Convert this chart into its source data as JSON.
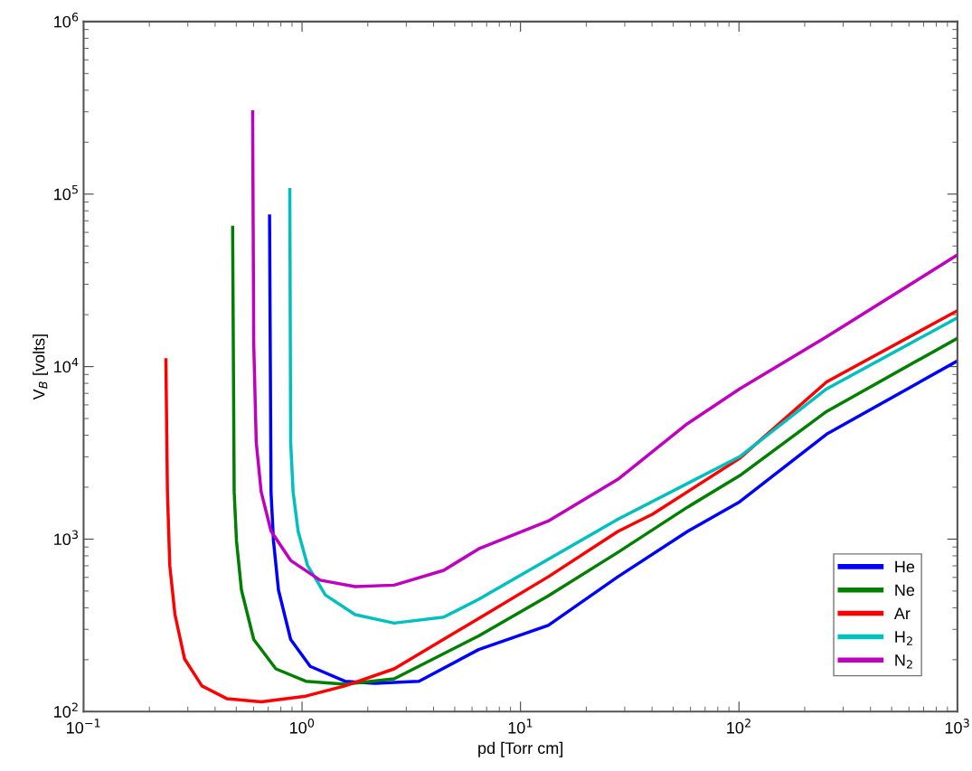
{
  "chart_data": {
    "type": "line",
    "xlabel": "pd [Torr cm]",
    "ylabel": "V$_{B}$ [volts]",
    "log": "xy",
    "xlim": [
      0.1,
      1000
    ],
    "ylim": [
      100,
      1000000
    ],
    "xticks": [
      {
        "value": 0.1,
        "label": "10$^{−1}$"
      },
      {
        "value": 1,
        "label": "10$^{0}$"
      },
      {
        "value": 10,
        "label": "10$^{1}$"
      },
      {
        "value": 100,
        "label": "10$^{2}$"
      },
      {
        "value": 1000,
        "label": "10$^{3}$"
      }
    ],
    "yticks": [
      {
        "value": 100,
        "label": "10$^{2}$"
      },
      {
        "value": 1000,
        "label": "10$^{3}$"
      },
      {
        "value": 10000,
        "label": "10$^{4}$"
      },
      {
        "value": 100000,
        "label": "10$^{5}$"
      },
      {
        "value": 1000000,
        "label": "10$^{6}$"
      }
    ],
    "grid": false,
    "legend": "bottom right",
    "marker": "none",
    "line_style": "solid",
    "series": [
      {
        "name": "He",
        "color": "#0000ff",
        "x": [
          0.71,
          0.721,
          0.74,
          0.78,
          0.887,
          1.09,
          1.57,
          2.15,
          3.43,
          6.44,
          13.4,
          27.9,
          58.1,
          100.7,
          252,
          1000
        ],
        "values": [
          76200,
          1880,
          977,
          507,
          262,
          183,
          150,
          146,
          150,
          229,
          316,
          605,
          1108,
          1645,
          4060,
          10800
        ]
      },
      {
        "name": "Ne",
        "color": "#007f00",
        "x": [
          0.481,
          0.489,
          0.501,
          0.528,
          0.601,
          0.759,
          1.04,
          1.57,
          2.64,
          6.44,
          13.4,
          27.9,
          58.1,
          100.7,
          252,
          1000
        ],
        "values": [
          65500,
          1880,
          977,
          507,
          262,
          177,
          150,
          144,
          155,
          275,
          469,
          838,
          1531,
          2330,
          5500,
          14600
        ]
      },
      {
        "name": "Ar",
        "color": "#ff0000",
        "x": [
          0.238,
          0.242,
          0.248,
          0.262,
          0.29,
          0.348,
          0.452,
          0.65,
          1.04,
          1.57,
          2.64,
          6.44,
          13.4,
          27.9,
          40.3,
          100.7,
          252,
          1000
        ],
        "values": [
          11200,
          1880,
          703,
          365,
          202,
          141,
          119,
          114,
          123,
          141,
          177,
          347,
          605,
          1108,
          1397,
          2940,
          8150,
          21100
        ]
      },
      {
        "name": "H$_{2}$",
        "color": "#00bfbf",
        "x": [
          0.879,
          0.887,
          0.91,
          0.959,
          1.06,
          1.28,
          1.75,
          2.64,
          4.45,
          6.44,
          13.4,
          27.9,
          100.7,
          252,
          1000
        ],
        "values": [
          108600,
          3640,
          1880,
          1114,
          703,
          474,
          365,
          326,
          353,
          448,
          764,
          1303,
          3005,
          7430,
          19200
        ]
      },
      {
        "name": "N$_{2}$",
        "color": "#bf00bf",
        "x": [
          0.594,
          0.601,
          0.617,
          0.65,
          0.721,
          0.887,
          1.21,
          1.75,
          2.64,
          4.45,
          6.44,
          13.4,
          27.9,
          58.1,
          100.7,
          252,
          1000
        ],
        "values": [
          306000,
          13500,
          3640,
          1880,
          1114,
          752,
          578,
          531,
          541,
          659,
          879,
          1273,
          2220,
          4670,
          7430,
          14900,
          44400
        ]
      }
    ]
  }
}
